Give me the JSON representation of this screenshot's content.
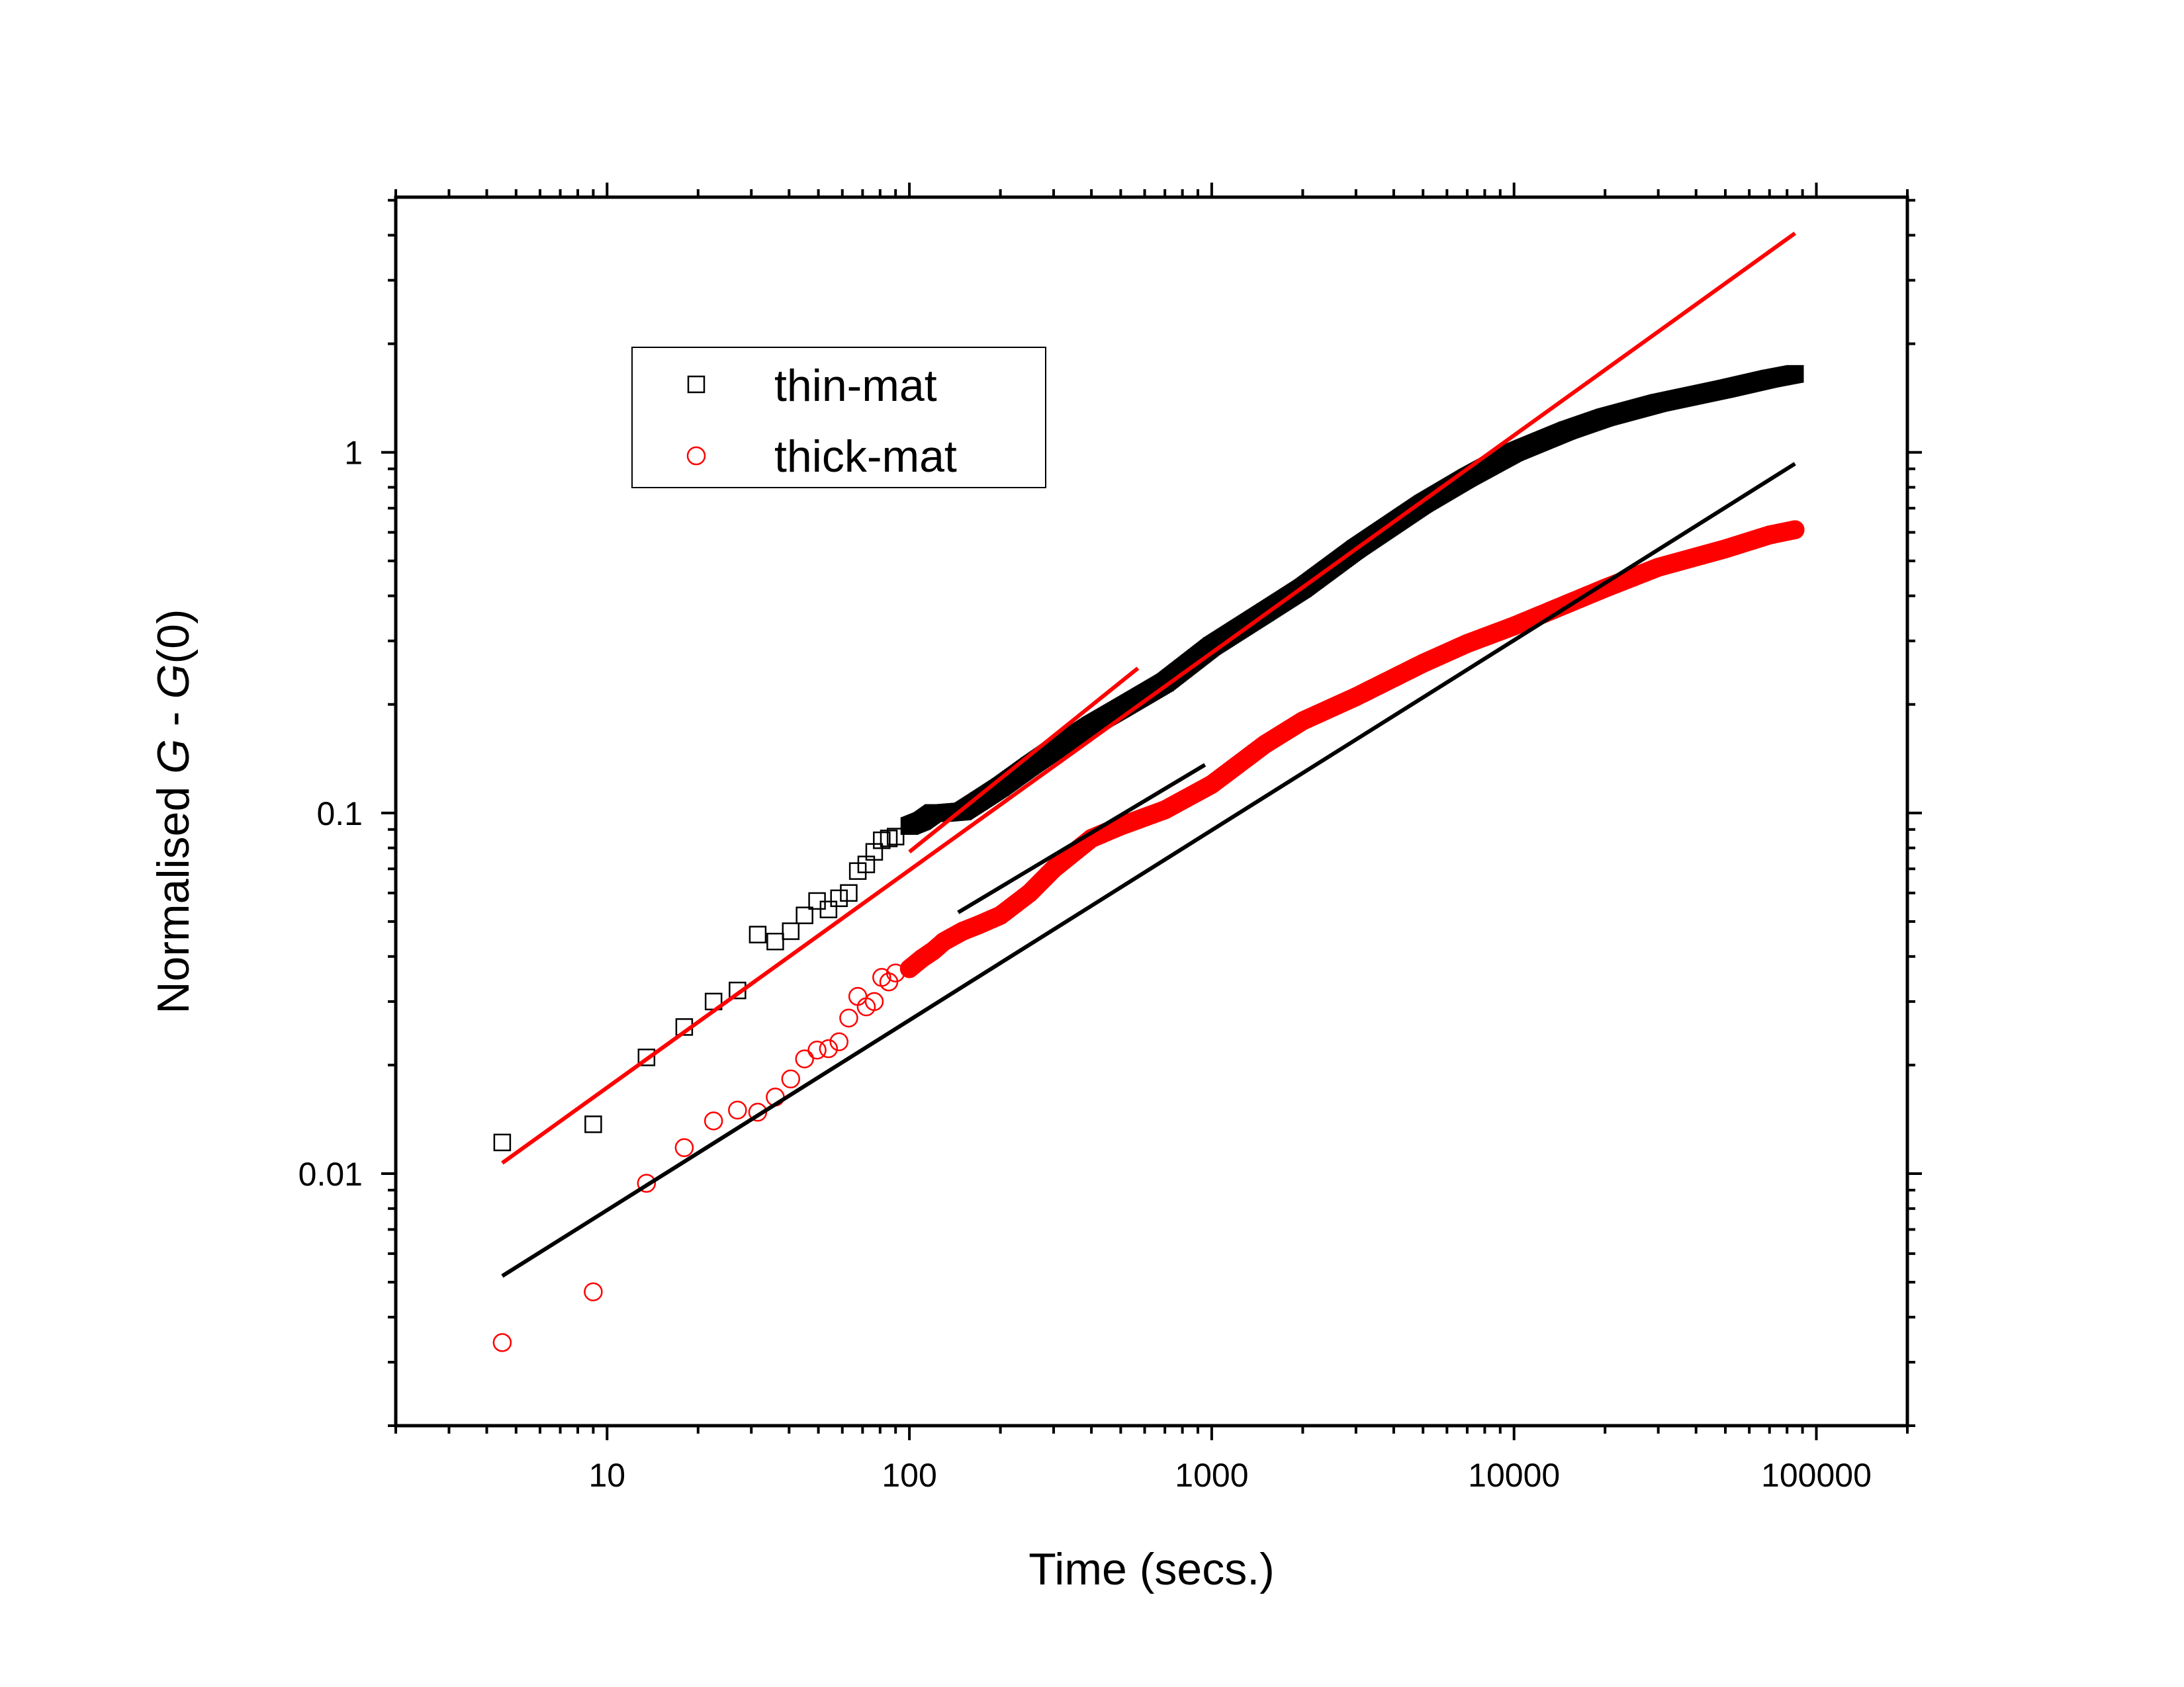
{
  "chart_data": {
    "type": "scatter",
    "title": "",
    "xlabel": "Time (secs.)",
    "ylabel": {
      "prefix": "Normalised ",
      "g1": "G",
      "mid": " - ",
      "g2": "G",
      "suffix": "(0)"
    },
    "xscale": "log",
    "yscale": "log",
    "xlim": [
      2,
      200000
    ],
    "ylim": [
      0.002,
      5.1
    ],
    "xticks": [
      10,
      100,
      1000,
      10000,
      100000
    ],
    "xtick_labels": [
      "10",
      "100",
      "1000",
      "10000",
      "100000"
    ],
    "yticks": [
      0.01,
      0.1,
      1
    ],
    "ytick_labels": [
      "0.01",
      "0.1",
      "1"
    ],
    "grid": false,
    "legend": {
      "position": "upper-left",
      "entries": [
        "thin-mat",
        "thick-mat"
      ]
    },
    "colors": {
      "thin": "#000000",
      "thick": "#ff0000",
      "fit_red": "#ff0000",
      "fit_black": "#000000"
    },
    "series": [
      {
        "name": "thin-mat",
        "marker": "square",
        "color": "#000000",
        "x": [
          4.5,
          9,
          13.5,
          18,
          22.5,
          27,
          31.5,
          36,
          40.5,
          45,
          49.5,
          54,
          58.5,
          63,
          67.5,
          72,
          76.5,
          81,
          85.5,
          90,
          100,
          110,
          120,
          130,
          150,
          170,
          200,
          250,
          300,
          400,
          500,
          700,
          1000,
          1500,
          2000,
          3000,
          5000,
          7000,
          10000,
          15000,
          20000,
          30000,
          50000,
          70000,
          85000
        ],
        "y": [
          0.0122,
          0.0137,
          0.021,
          0.0255,
          0.03,
          0.0322,
          0.046,
          0.044,
          0.047,
          0.052,
          0.057,
          0.054,
          0.058,
          0.06,
          0.069,
          0.072,
          0.078,
          0.084,
          0.085,
          0.086,
          0.092,
          0.095,
          0.1,
          0.1,
          0.101,
          0.108,
          0.118,
          0.135,
          0.15,
          0.175,
          0.195,
          0.23,
          0.29,
          0.36,
          0.42,
          0.54,
          0.72,
          0.85,
          1.0,
          1.15,
          1.25,
          1.37,
          1.5,
          1.6,
          1.65
        ]
      },
      {
        "name": "thick-mat",
        "marker": "circle",
        "color": "#ff0000",
        "x": [
          4.5,
          9,
          13.5,
          18,
          22.5,
          27,
          31.5,
          36,
          40.5,
          45,
          49.5,
          54,
          58.5,
          63,
          67.5,
          72,
          76.5,
          81,
          85.5,
          90,
          100,
          110,
          120,
          130,
          150,
          170,
          200,
          250,
          300,
          400,
          500,
          700,
          1000,
          1500,
          2000,
          3000,
          5000,
          7000,
          10000,
          15000,
          20000,
          30000,
          50000,
          70000,
          85000
        ],
        "y": [
          0.0034,
          0.0047,
          0.0094,
          0.0118,
          0.014,
          0.015,
          0.0148,
          0.0163,
          0.0183,
          0.0208,
          0.022,
          0.0222,
          0.0232,
          0.027,
          0.031,
          0.029,
          0.03,
          0.035,
          0.034,
          0.036,
          0.037,
          0.0395,
          0.0415,
          0.044,
          0.047,
          0.049,
          0.052,
          0.06,
          0.07,
          0.085,
          0.092,
          0.102,
          0.12,
          0.155,
          0.18,
          0.21,
          0.26,
          0.295,
          0.33,
          0.38,
          0.42,
          0.48,
          0.54,
          0.59,
          0.61
        ]
      }
    ],
    "fits": [
      {
        "color": "#ff0000",
        "x": [
          4.5,
          85000
        ],
        "y": [
          0.0107,
          4.05
        ]
      },
      {
        "color": "#ff0000",
        "x": [
          100,
          570
        ],
        "y": [
          0.078,
          0.252
        ]
      },
      {
        "color": "#000000",
        "x": [
          4.5,
          85000
        ],
        "y": [
          0.0052,
          0.93
        ]
      },
      {
        "color": "#000000",
        "x": [
          145,
          950
        ],
        "y": [
          0.053,
          0.136
        ]
      }
    ]
  }
}
